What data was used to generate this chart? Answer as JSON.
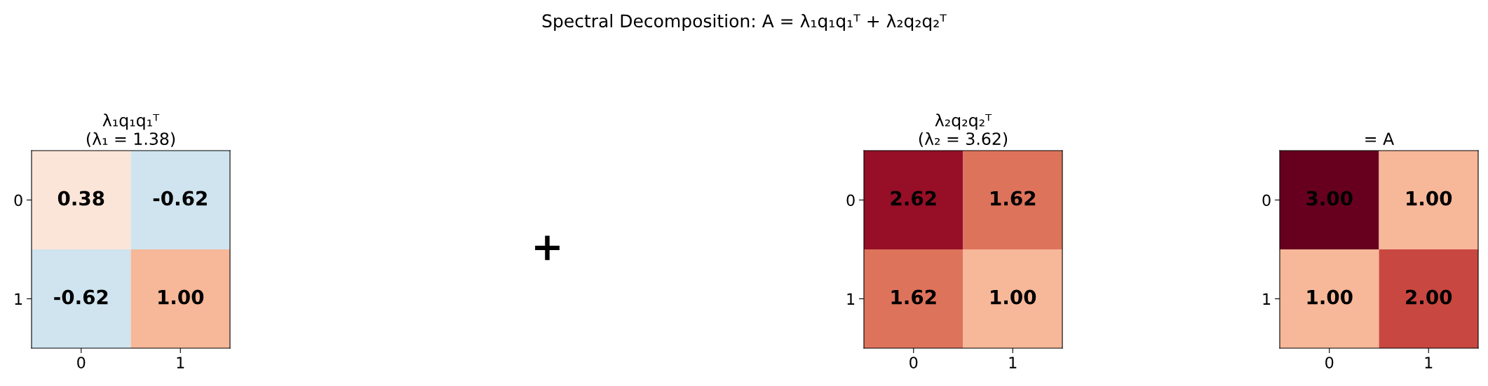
{
  "chart_data": [
    {
      "type": "other",
      "title": "Spectral Decomposition: A = λ₁q₁q₁ᵀ + λ₂q₂q₂ᵀ"
    },
    {
      "type": "heatmap",
      "title": "λ₁q₁q₁ᵀ\n(λ₁ = 1.38)",
      "categories": [
        "0",
        "1"
      ],
      "y_categories": [
        "0",
        "1"
      ],
      "cells": [
        [
          0.38,
          -0.62
        ],
        [
          -0.62,
          1.0
        ]
      ],
      "cell_labels": [
        [
          "0.38",
          "-0.62"
        ],
        [
          "-0.62",
          "1.00"
        ]
      ]
    },
    {
      "type": "other",
      "annotations": [
        "+"
      ]
    },
    {
      "type": "heatmap",
      "title": "λ₂q₂q₂ᵀ\n(λ₂ = 3.62)",
      "categories": [
        "0",
        "1"
      ],
      "y_categories": [
        "0",
        "1"
      ],
      "cells": [
        [
          2.62,
          1.62
        ],
        [
          1.62,
          1.0
        ]
      ],
      "cell_labels": [
        [
          "2.62",
          "1.62"
        ],
        [
          "1.62",
          "1.00"
        ]
      ]
    },
    {
      "type": "heatmap",
      "title": "= A",
      "categories": [
        "0",
        "1"
      ],
      "y_categories": [
        "0",
        "1"
      ],
      "cells": [
        [
          3.0,
          1.0
        ],
        [
          1.0,
          2.0
        ]
      ],
      "cell_labels": [
        [
          "3.00",
          "1.00"
        ],
        [
          "1.00",
          "2.00"
        ]
      ]
    }
  ]
}
